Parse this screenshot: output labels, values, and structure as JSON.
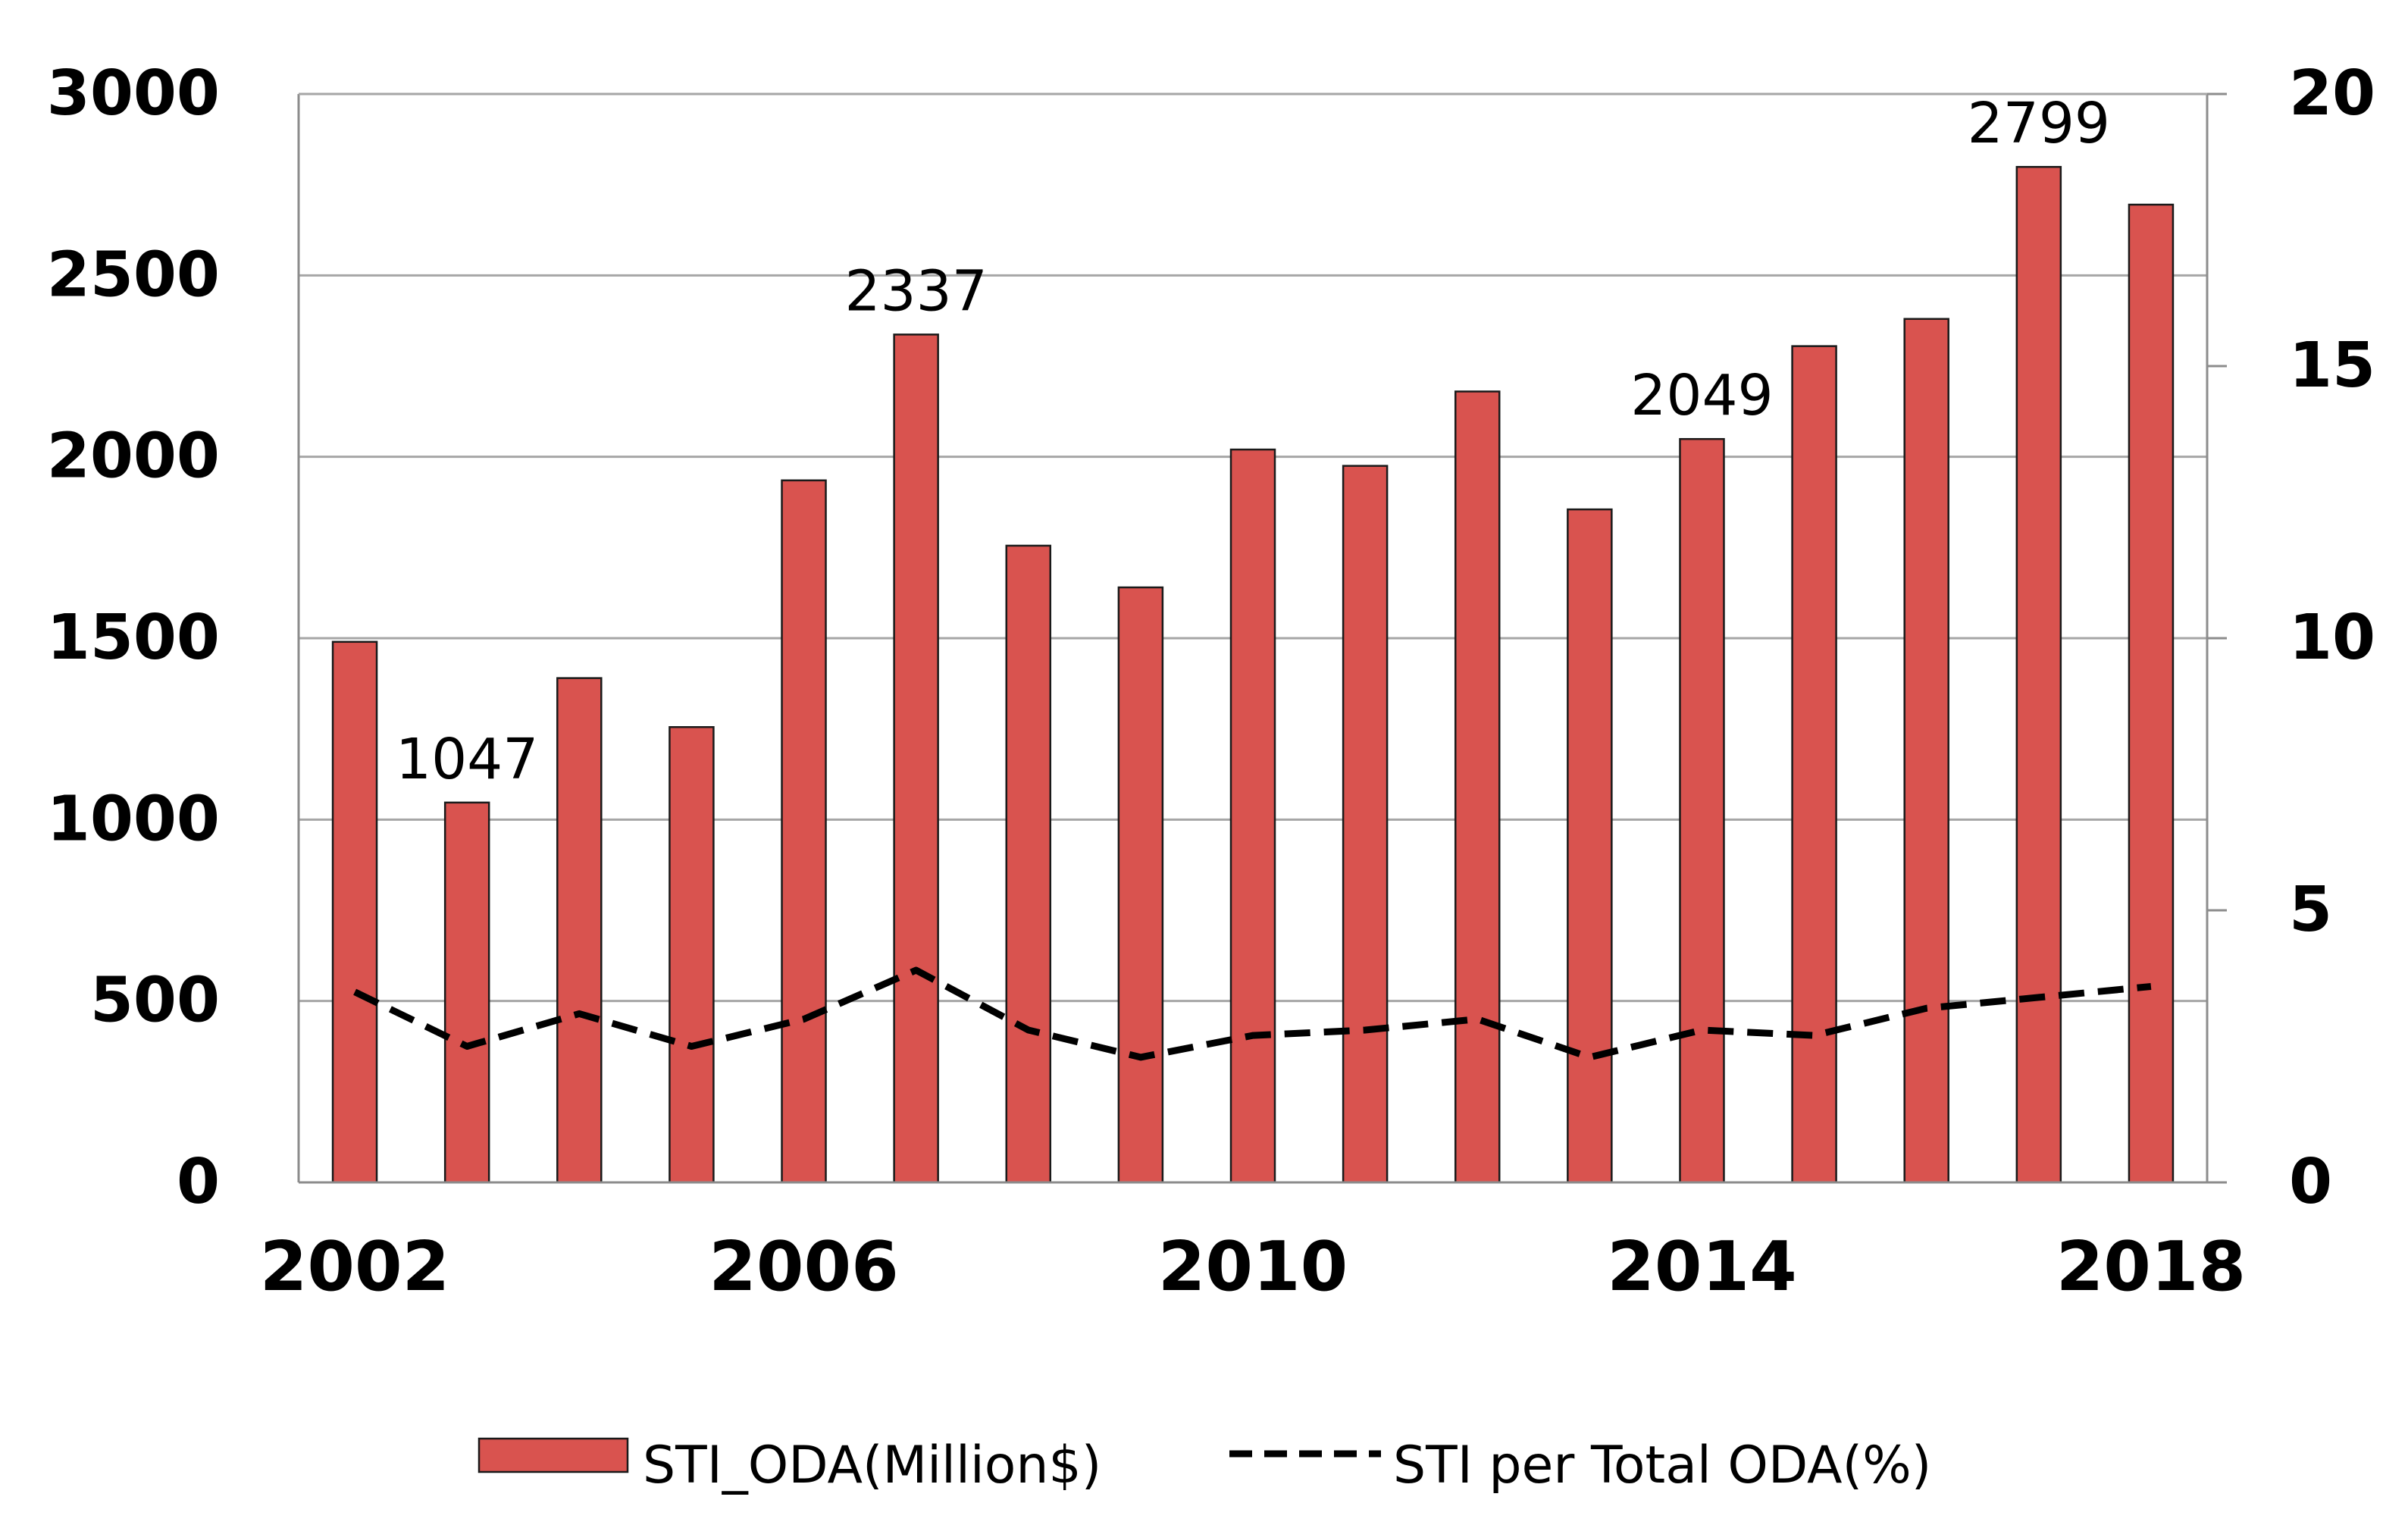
{
  "chart_data": {
    "type": "bar",
    "title": "",
    "xlabel": "",
    "ylabel": "",
    "y2label": "",
    "categories": [
      2002,
      2003,
      2004,
      2005,
      2006,
      2007,
      2008,
      2009,
      2010,
      2011,
      2012,
      2013,
      2014,
      2015,
      2016,
      2017,
      2018
    ],
    "x_tick_labels": [
      "2002",
      "2006",
      "2010",
      "2014",
      "2018"
    ],
    "series": [
      {
        "name": "STI_ODA(Million$)",
        "type": "bar",
        "axis": "left",
        "color": "#D9534F",
        "values": [
          1490,
          1047,
          1390,
          1255,
          1935,
          2337,
          1755,
          1640,
          2020,
          1975,
          2180,
          1855,
          2049,
          2305,
          2380,
          2799,
          2695
        ]
      },
      {
        "name": "STI per Total ODA(%)",
        "type": "line",
        "axis": "right",
        "style": "dashed",
        "color": "#000000",
        "values": [
          3.5,
          2.5,
          3.1,
          2.5,
          3.0,
          3.9,
          2.8,
          2.3,
          2.7,
          2.8,
          3.0,
          2.3,
          2.8,
          2.7,
          3.2,
          3.4,
          3.6
        ]
      }
    ],
    "data_labels": [
      {
        "year": 2003,
        "text": "1047"
      },
      {
        "year": 2007,
        "text": "2337"
      },
      {
        "year": 2014,
        "text": "2049"
      },
      {
        "year": 2017,
        "text": "2799"
      }
    ],
    "y_left": {
      "min": 0,
      "max": 3000,
      "ticks": [
        "0",
        "500",
        "1000",
        "1500",
        "2000",
        "2500",
        "3000"
      ]
    },
    "y_right": {
      "min": 0,
      "max": 20,
      "ticks": [
        "0",
        "5",
        "10",
        "15",
        "20"
      ]
    },
    "grid": true,
    "legend_position": "bottom-center",
    "legend": [
      {
        "label": "STI_ODA(Million$)",
        "kind": "bar"
      },
      {
        "label": "STI per Total ODA(%)",
        "kind": "dashed-line"
      }
    ]
  }
}
